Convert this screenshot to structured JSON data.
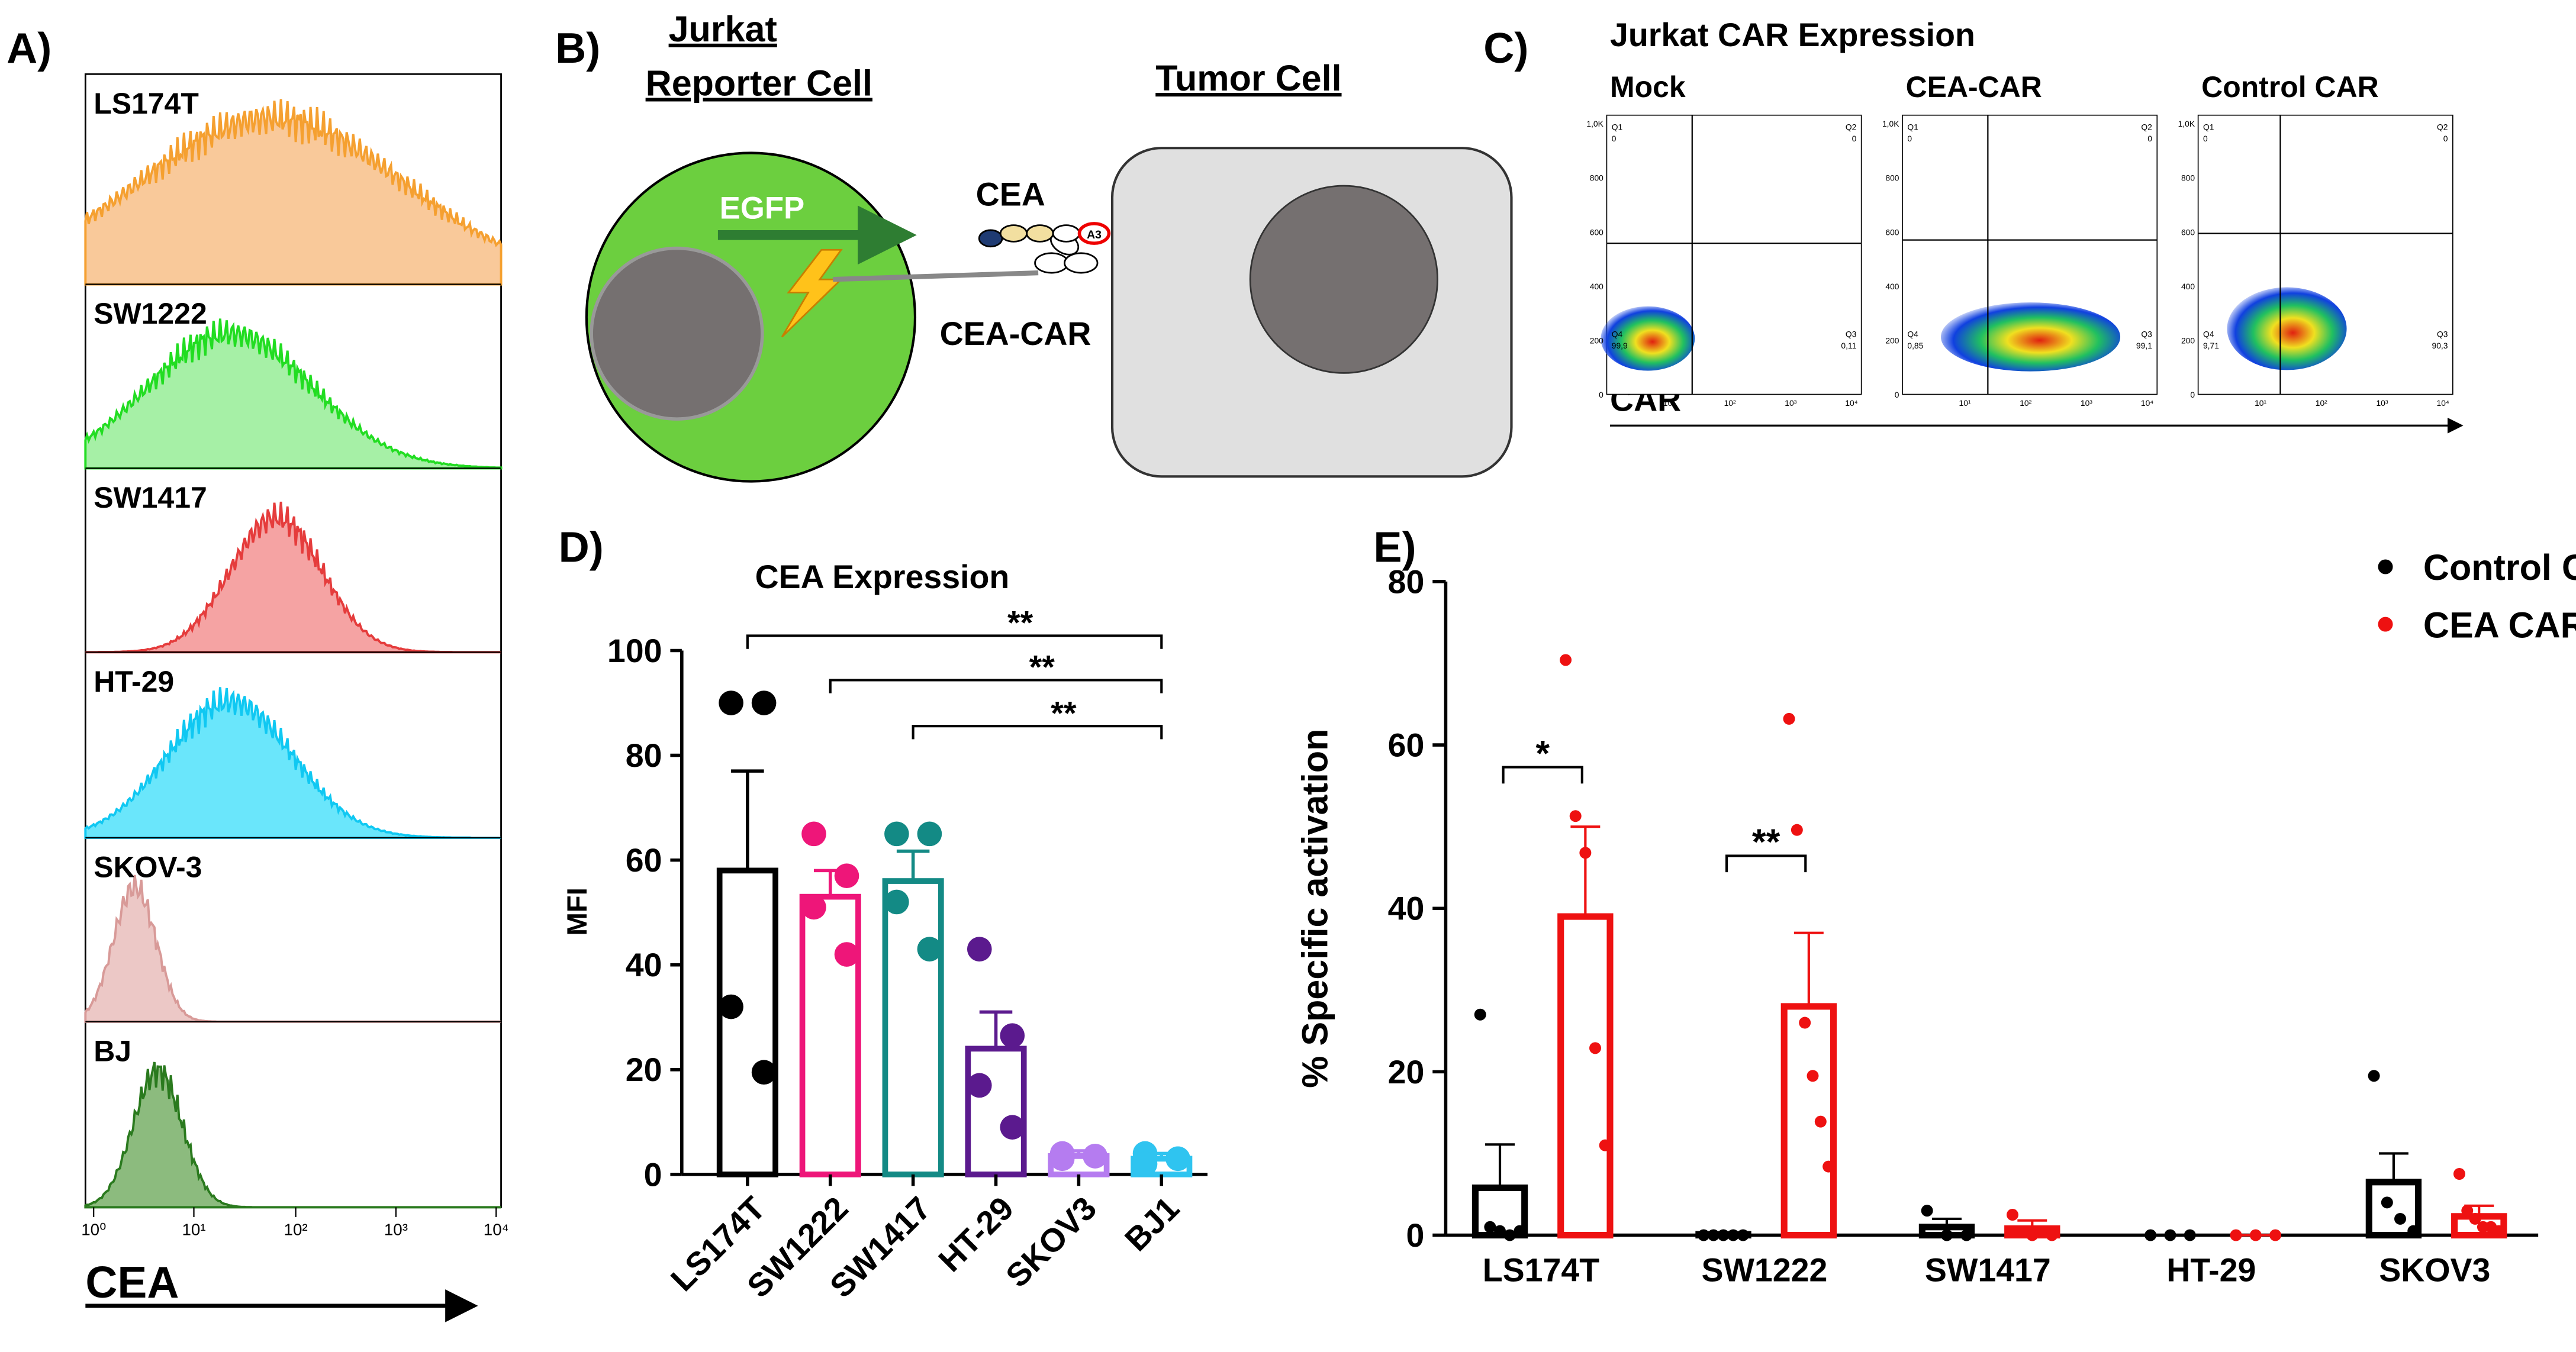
{
  "panel_labels": [
    "A)",
    "B)",
    "C)",
    "D)",
    "E)"
  ],
  "histograms": {
    "samples": [
      "LS174T",
      "SW1222",
      "SW1417",
      "HT-29",
      "SKOV-3",
      "BJ"
    ],
    "xticks": [
      "10⁰",
      "10¹",
      "10²",
      "10³",
      "10⁴"
    ],
    "xlabel": "CEA"
  },
  "diagram": {
    "jurkat_line1": "Jurkat",
    "jurkat_line2": "Reporter Cell",
    "tumor": "Tumor Cell",
    "egfp": "EGFP",
    "cea": "CEA",
    "car": "CEA-CAR",
    "domain": "A3"
  },
  "flow": {
    "title": "Jurkat CAR Expression",
    "xlabel": "CAR",
    "yticks": [
      "1,0K",
      "800",
      "600",
      "400",
      "200",
      "0"
    ],
    "xticks": [
      "10¹",
      "10²",
      "10³",
      "10⁴"
    ],
    "plots": [
      {
        "name": "Mock",
        "q1": [
          "Q1",
          "0"
        ],
        "q2": [
          "Q2",
          "0"
        ],
        "q3": [
          "Q3",
          "0,11"
        ],
        "q4": [
          "Q4",
          "99,9"
        ]
      },
      {
        "name": "CEA-CAR",
        "q1": [
          "Q1",
          "0"
        ],
        "q2": [
          "Q2",
          "0"
        ],
        "q3": [
          "Q3",
          "99,1"
        ],
        "q4": [
          "Q4",
          "0,85"
        ]
      },
      {
        "name": "Control CAR",
        "q1": [
          "Q1",
          "0"
        ],
        "q2": [
          "Q2",
          "0"
        ],
        "q3": [
          "Q3",
          "90,3"
        ],
        "q4": [
          "Q4",
          "9,71"
        ]
      }
    ]
  },
  "chart_data": [
    {
      "type": "bar",
      "title": "CEA Expression",
      "ylabel": "MFI",
      "categories": [
        "LS174T",
        "SW1222",
        "SW1417",
        "HT-29",
        "SKOV3",
        "BJ1"
      ],
      "values": [
        58,
        53,
        56,
        24,
        3.5,
        3
      ],
      "errors": [
        19,
        5,
        5.7,
        7,
        1,
        1
      ],
      "points": [
        [
          90,
          90,
          32,
          19.5
        ],
        [
          65,
          57,
          51,
          42
        ],
        [
          65,
          65,
          52,
          43
        ],
        [
          43,
          26.5,
          17,
          9
        ],
        [
          4,
          3.5,
          3,
          3.5
        ],
        [
          4,
          3,
          2,
          3
        ]
      ],
      "colors": [
        "#000000",
        "#ee1679",
        "#138a85",
        "#5b1a8e",
        "#b57cf0",
        "#2fc4f0"
      ],
      "ylim": [
        0,
        100
      ],
      "yticks": [
        0,
        20,
        40,
        60,
        80,
        100
      ],
      "annotations": [
        {
          "text": "**",
          "between": [
            "LS174T",
            "BJ1"
          ]
        },
        {
          "text": "**",
          "between": [
            "SW1222",
            "BJ1"
          ]
        },
        {
          "text": "**",
          "between": [
            "SW1417",
            "BJ1"
          ]
        }
      ]
    },
    {
      "type": "grouped_bar",
      "ylabel": "% Specific activation",
      "categories": [
        "LS174T",
        "SW1222",
        "SW1417",
        "HT-29",
        "SKOV3"
      ],
      "series": [
        {
          "name": "Control CAR",
          "color": "#000000",
          "values": [
            5.8,
            0.1,
            1,
            0,
            6.5
          ],
          "errors": [
            5.3,
            0.1,
            1,
            0,
            3.5
          ],
          "points": [
            [
              27,
              1,
              0.5,
              0,
              0.5
            ],
            [
              0,
              0,
              0,
              0,
              0
            ],
            [
              3,
              0,
              0
            ],
            [
              0,
              0,
              0
            ],
            [
              19.5,
              4,
              2,
              0.5
            ]
          ]
        },
        {
          "name": "CEA CAR",
          "color": "#ee1111",
          "values": [
            39,
            28,
            0.8,
            0,
            2.3
          ],
          "errors": [
            11,
            9,
            1,
            0,
            1.3
          ],
          "points": [
            [
              70.4,
              51.3,
              46.8,
              22.9,
              11
            ],
            [
              63.2,
              49.6,
              26,
              19.5,
              13.9,
              8.4
            ],
            [
              2.5,
              0,
              0
            ],
            [
              0,
              0,
              0
            ],
            [
              7.5,
              3,
              2,
              1,
              1,
              0.5
            ]
          ]
        }
      ],
      "ylim": [
        0,
        80
      ],
      "yticks": [
        0,
        20,
        40,
        60,
        80
      ],
      "legend": "upper right",
      "annotations": [
        {
          "text": "*",
          "category": "LS174T"
        },
        {
          "text": "**",
          "category": "SW1222"
        }
      ]
    }
  ]
}
